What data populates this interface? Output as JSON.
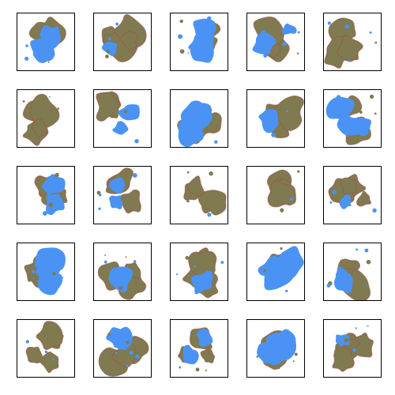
{
  "grid": {
    "rows": 5,
    "columns": 5,
    "tile_count": 25
  },
  "colors": {
    "background": "#ffffff",
    "frame": "#000000",
    "terrain": "#7f7a50",
    "terrain_edge": "#9a5a4a",
    "water": "#4a93f5"
  },
  "tiles": [
    {
      "row": 1,
      "col": 1,
      "content": "mostly-water",
      "seed": 11
    },
    {
      "row": 1,
      "col": 2,
      "content": "mostly-land",
      "seed": 12
    },
    {
      "row": 1,
      "col": 3,
      "content": "mostly-water",
      "seed": 13
    },
    {
      "row": 1,
      "col": 4,
      "content": "mixed",
      "seed": 14
    },
    {
      "row": 1,
      "col": 5,
      "content": "mostly-land",
      "seed": 15
    },
    {
      "row": 2,
      "col": 1,
      "content": "mostly-land",
      "seed": 21
    },
    {
      "row": 2,
      "col": 2,
      "content": "mixed",
      "seed": 22
    },
    {
      "row": 2,
      "col": 3,
      "content": "mostly-water",
      "seed": 23
    },
    {
      "row": 2,
      "col": 4,
      "content": "mostly-land",
      "seed": 24
    },
    {
      "row": 2,
      "col": 5,
      "content": "mostly-water",
      "seed": 25
    },
    {
      "row": 3,
      "col": 1,
      "content": "mixed",
      "seed": 31
    },
    {
      "row": 3,
      "col": 2,
      "content": "mixed",
      "seed": 32
    },
    {
      "row": 3,
      "col": 3,
      "content": "mostly-land",
      "seed": 33
    },
    {
      "row": 3,
      "col": 4,
      "content": "mostly-land",
      "seed": 34
    },
    {
      "row": 3,
      "col": 5,
      "content": "mostly-land",
      "seed": 35
    },
    {
      "row": 4,
      "col": 1,
      "content": "mostly-water",
      "seed": 41
    },
    {
      "row": 4,
      "col": 2,
      "content": "mixed",
      "seed": 42
    },
    {
      "row": 4,
      "col": 3,
      "content": "mostly-land",
      "seed": 43
    },
    {
      "row": 4,
      "col": 4,
      "content": "mostly-water",
      "seed": 44
    },
    {
      "row": 4,
      "col": 5,
      "content": "mixed",
      "seed": 45
    },
    {
      "row": 5,
      "col": 1,
      "content": "mostly-land",
      "seed": 51
    },
    {
      "row": 5,
      "col": 2,
      "content": "mixed",
      "seed": 52
    },
    {
      "row": 5,
      "col": 3,
      "content": "mixed",
      "seed": 53
    },
    {
      "row": 5,
      "col": 4,
      "content": "mostly-water",
      "seed": 54
    },
    {
      "row": 5,
      "col": 5,
      "content": "mostly-land",
      "seed": 55
    }
  ]
}
